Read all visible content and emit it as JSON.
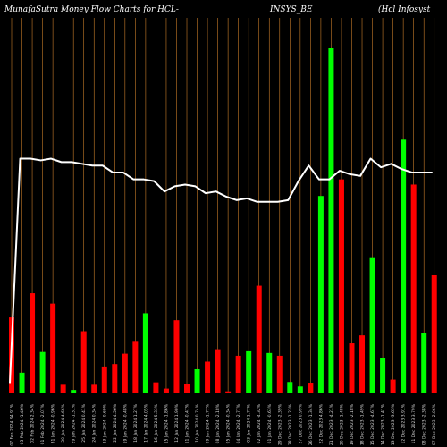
{
  "title": {
    "part1": "MunafaSutra  Money Flow  Charts for HCL-",
    "part2": "INSYS_BE",
    "part3": "(Hcl Infosyst"
  },
  "chart_data": {
    "type": "bar",
    "title": "MunafaSutra Money Flow Charts for HCL-INSYS_BE (Hcl Infosyst",
    "ylim": [
      0,
      100
    ],
    "colors": {
      "up": "#00ff00",
      "down": "#ff0000",
      "line": "#ffffff",
      "grid": "#c87d2a",
      "bg": "#000000"
    },
    "categories": [
      "07 Feb 2024 94.91%",
      "05 Feb 2024 -1.46%",
      "02 Feb 2024 2.34%",
      "01 Feb 2024 -2.07%",
      "31 Jan 2024 -0.96%",
      "30 Jan 2024 4.66%",
      "29 Jan 2024 -1.31%",
      "25 Jan 2024 0.41%",
      "24 Jan 2024 0.34%",
      "23 Jan 2024 -0.69%",
      "22 Jan 2024 4.56%",
      "19 Jan 2024 -0.48%",
      "18 Jan 2024 1.27%",
      "17 Jan 2024 4.05%",
      "16 Jan 2024 5.33%",
      "15 Jan 2024 -1.86%",
      "12 Jan 2024 1.90%",
      "11 Jan 2024 -0.47%",
      "10 Jan 2024 0.74%",
      "09 Jan 2024 -1.77%",
      "08 Jan 2024 -2.18%",
      "05 Jan 2024 -0.34%",
      "04 Jan 2024 -2.77%",
      "03 Jan 2024 1.77%",
      "02 Jan 2024 -4.32%",
      "01 Jan 2024 -0.63%",
      "29 Dec 2023 -2.39%",
      "28 Dec 2023 -1.23%",
      "27 Dec 2023 0.99%",
      "26 Dec 2023 -1.34%",
      "22 Dec 2023 4.86%",
      "21 Dec 2023 -4.21%",
      "20 Dec 2023 -1.48%",
      "19 Dec 2023 -2.18%",
      "18 Dec 2023 -1.49%",
      "15 Dec 2023 -4.67%",
      "14 Dec 2023 -1.41%",
      "13 Dec 2023 -3.65%",
      "12 Dec 2023 3.91%",
      "11 Dec 2023 3.79%",
      "08 Dec 2023 -2.38%",
      "07 Dec 2023 -2.06%"
    ],
    "series": [
      {
        "type": "bar",
        "values": [
          22,
          6,
          29,
          12,
          26,
          2.5,
          1,
          18,
          2.5,
          7.8,
          8.5,
          11.5,
          15.2,
          23.2,
          3.2,
          1.4,
          21.2,
          2.8,
          7,
          9.2,
          12.8,
          0.6,
          10.9,
          12.2,
          31.2,
          11.7,
          10.9,
          3.3,
          2,
          3.1,
          57.2,
          100,
          62,
          14.5,
          16.8,
          39.2,
          10.3,
          4,
          73.5,
          60.5,
          17.4,
          34.2
        ],
        "direction": [
          "down",
          "up",
          "down",
          "up",
          "down",
          "down",
          "up",
          "down",
          "down",
          "down",
          "down",
          "down",
          "down",
          "up",
          "down",
          "down",
          "down",
          "down",
          "up",
          "down",
          "down",
          "down",
          "down",
          "up",
          "down",
          "up",
          "down",
          "up",
          "up",
          "down",
          "up",
          "up",
          "down",
          "down",
          "down",
          "up",
          "up",
          "down",
          "up",
          "down",
          "up",
          "down"
        ]
      },
      {
        "type": "line",
        "values": [
          3,
          68,
          68,
          67.5,
          68,
          67,
          67,
          66.5,
          66,
          66,
          64,
          64,
          62,
          62,
          61.5,
          58.5,
          60,
          60.5,
          60,
          58,
          58.5,
          57,
          56,
          56.5,
          55.5,
          55.5,
          55.5,
          56,
          61.5,
          66,
          62,
          62,
          64.5,
          63.5,
          63,
          68,
          65.5,
          66.5,
          65,
          64,
          64,
          64
        ]
      }
    ]
  }
}
